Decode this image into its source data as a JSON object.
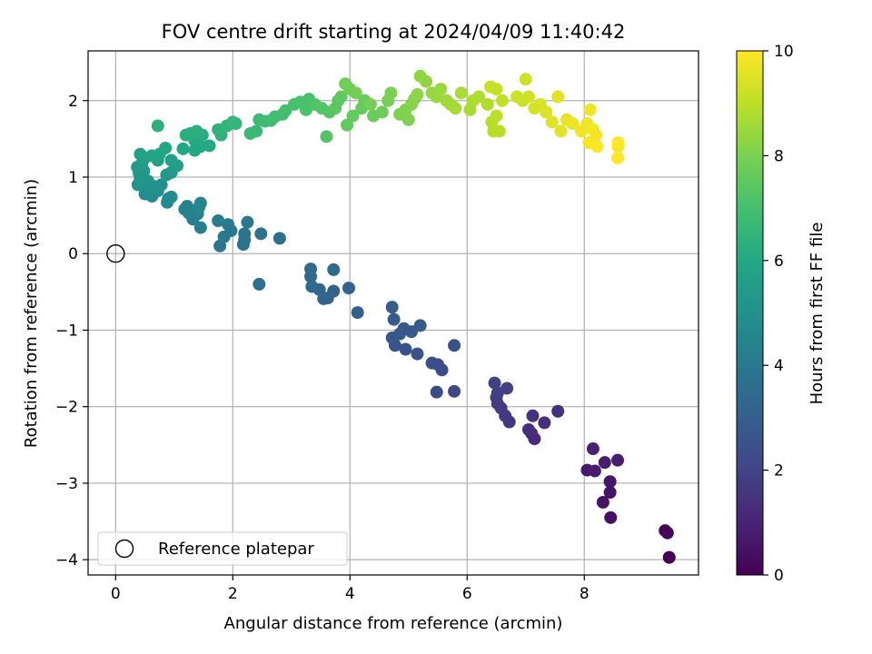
{
  "chart_data": {
    "type": "scatter",
    "title": "FOV centre drift starting at 2024/04/09 11:40:42",
    "xlabel": "Angular distance from reference (arcmin)",
    "ylabel": "Rotation from reference (arcmin)",
    "xlim": [
      -0.47,
      9.95
    ],
    "ylim": [
      -4.2,
      2.65
    ],
    "x_ticks": [
      0,
      2,
      4,
      6,
      8
    ],
    "y_ticks": [
      -4,
      -3,
      -2,
      -1,
      0,
      1,
      2
    ],
    "grid": true,
    "colormap": "viridis",
    "colorbar": {
      "label": "Hours from first FF file",
      "range": [
        0,
        10
      ],
      "ticks": [
        0,
        2,
        4,
        6,
        8,
        10
      ]
    },
    "legend": {
      "position": "lower-left",
      "entries": [
        "Reference platepar"
      ]
    },
    "reference_point": {
      "x": 0,
      "y": 0,
      "label": "Reference platepar"
    },
    "points": [
      [
        9.45,
        -3.97,
        0.0
      ],
      [
        9.38,
        -3.62,
        0.1
      ],
      [
        9.42,
        -3.65,
        0.15
      ],
      [
        8.45,
        -3.45,
        0.4
      ],
      [
        8.32,
        -3.25,
        0.5
      ],
      [
        8.44,
        -3.12,
        0.55
      ],
      [
        8.44,
        -2.98,
        0.6
      ],
      [
        8.05,
        -2.83,
        0.7
      ],
      [
        8.18,
        -2.84,
        0.75
      ],
      [
        8.35,
        -2.73,
        0.8
      ],
      [
        8.57,
        -2.7,
        0.85
      ],
      [
        8.15,
        -2.55,
        0.9
      ],
      [
        7.15,
        -2.42,
        1.2
      ],
      [
        7.1,
        -2.35,
        1.25
      ],
      [
        7.05,
        -2.3,
        1.3
      ],
      [
        7.32,
        -2.21,
        1.35
      ],
      [
        7.12,
        -2.12,
        1.4
      ],
      [
        7.55,
        -2.06,
        1.45
      ],
      [
        6.72,
        -2.2,
        1.6
      ],
      [
        6.65,
        -2.12,
        1.65
      ],
      [
        6.58,
        -2.02,
        1.7
      ],
      [
        6.52,
        -1.96,
        1.75
      ],
      [
        6.5,
        -1.88,
        1.8
      ],
      [
        6.52,
        -1.82,
        1.85
      ],
      [
        6.68,
        -1.76,
        1.9
      ],
      [
        6.47,
        -1.69,
        1.95
      ],
      [
        5.78,
        -1.8,
        2.2
      ],
      [
        5.48,
        -1.81,
        2.25
      ],
      [
        5.57,
        -1.52,
        2.3
      ],
      [
        5.5,
        -1.45,
        2.35
      ],
      [
        5.4,
        -1.43,
        2.4
      ],
      [
        5.78,
        -1.2,
        2.45
      ],
      [
        5.15,
        -1.31,
        2.5
      ],
      [
        4.95,
        -1.25,
        2.55
      ],
      [
        4.77,
        -1.2,
        2.6
      ],
      [
        4.72,
        -1.1,
        2.65
      ],
      [
        4.85,
        -1.05,
        2.7
      ],
      [
        5.05,
        -1.02,
        2.72
      ],
      [
        4.92,
        -0.98,
        2.75
      ],
      [
        5.2,
        -0.94,
        2.8
      ],
      [
        4.75,
        -0.86,
        2.85
      ],
      [
        4.72,
        -0.7,
        2.9
      ],
      [
        4.13,
        -0.77,
        3.05
      ],
      [
        3.98,
        -0.45,
        3.1
      ],
      [
        3.72,
        -0.49,
        3.15
      ],
      [
        3.62,
        -0.58,
        3.2
      ],
      [
        3.55,
        -0.59,
        3.25
      ],
      [
        3.48,
        -0.47,
        3.3
      ],
      [
        3.35,
        -0.43,
        3.35
      ],
      [
        3.33,
        -0.3,
        3.4
      ],
      [
        3.33,
        -0.2,
        3.45
      ],
      [
        3.72,
        -0.21,
        3.5
      ],
      [
        2.45,
        -0.4,
        3.6
      ],
      [
        2.8,
        0.2,
        3.7
      ],
      [
        2.48,
        0.26,
        3.75
      ],
      [
        2.18,
        0.12,
        3.8
      ],
      [
        2.2,
        0.18,
        3.82
      ],
      [
        2.2,
        0.26,
        3.85
      ],
      [
        1.78,
        0.1,
        3.9
      ],
      [
        2.25,
        0.41,
        3.95
      ],
      [
        1.97,
        0.3,
        4.0
      ],
      [
        1.85,
        0.22,
        4.05
      ],
      [
        1.92,
        0.38,
        4.1
      ],
      [
        1.75,
        0.43,
        4.15
      ],
      [
        1.45,
        0.34,
        4.2
      ],
      [
        1.32,
        0.45,
        4.25
      ],
      [
        1.4,
        0.52,
        4.3
      ],
      [
        1.25,
        0.53,
        4.35
      ],
      [
        1.18,
        0.58,
        4.4
      ],
      [
        1.22,
        0.62,
        4.45
      ],
      [
        1.42,
        0.6,
        4.5
      ],
      [
        1.45,
        0.66,
        4.55
      ],
      [
        0.9,
        0.72,
        4.65
      ],
      [
        0.88,
        0.67,
        4.7
      ],
      [
        0.95,
        0.74,
        4.75
      ],
      [
        0.62,
        0.75,
        4.8
      ],
      [
        0.5,
        0.78,
        4.85
      ],
      [
        0.72,
        0.82,
        4.9
      ],
      [
        0.78,
        0.9,
        4.95
      ],
      [
        0.65,
        0.88,
        5.0
      ],
      [
        0.58,
        0.87,
        5.05
      ],
      [
        0.38,
        0.9,
        5.1
      ],
      [
        0.55,
        0.95,
        5.15
      ],
      [
        0.42,
        0.98,
        5.2
      ],
      [
        0.4,
        1.05,
        5.25
      ],
      [
        0.48,
        1.08,
        5.3
      ],
      [
        0.87,
        1.03,
        5.35
      ],
      [
        0.95,
        1.06,
        5.4
      ],
      [
        0.37,
        1.13,
        5.45
      ],
      [
        0.45,
        1.18,
        5.5
      ],
      [
        1.05,
        1.15,
        5.55
      ],
      [
        0.95,
        1.22,
        5.6
      ],
      [
        0.72,
        1.22,
        5.65
      ],
      [
        0.5,
        1.25,
        5.7
      ],
      [
        0.42,
        1.3,
        5.75
      ],
      [
        0.62,
        1.28,
        5.8
      ],
      [
        0.75,
        1.3,
        5.85
      ],
      [
        0.85,
        1.38,
        5.9
      ],
      [
        1.15,
        1.37,
        5.95
      ],
      [
        1.35,
        1.35,
        6.0
      ],
      [
        1.45,
        1.4,
        6.02
      ],
      [
        1.6,
        1.41,
        6.05
      ],
      [
        1.35,
        1.48,
        6.1
      ],
      [
        1.48,
        1.55,
        6.15
      ],
      [
        1.28,
        1.57,
        6.2
      ],
      [
        1.2,
        1.55,
        6.25
      ],
      [
        1.38,
        1.6,
        6.3
      ],
      [
        0.72,
        1.67,
        6.35
      ],
      [
        1.8,
        1.55,
        6.4
      ],
      [
        1.75,
        1.62,
        6.45
      ],
      [
        1.9,
        1.67,
        6.5
      ],
      [
        2.05,
        1.7,
        6.55
      ],
      [
        2.0,
        1.72,
        6.6
      ],
      [
        2.4,
        1.6,
        6.65
      ],
      [
        2.3,
        1.57,
        6.7
      ],
      [
        2.45,
        1.75,
        6.75
      ],
      [
        2.65,
        1.74,
        6.8
      ],
      [
        2.55,
        1.73,
        6.85
      ],
      [
        2.72,
        1.79,
        6.9
      ],
      [
        2.85,
        1.82,
        6.95
      ],
      [
        2.9,
        1.87,
        7.0
      ],
      [
        3.05,
        1.95,
        7.05
      ],
      [
        3.15,
        1.98,
        7.1
      ],
      [
        3.3,
        2.02,
        7.12
      ],
      [
        3.25,
        1.88,
        7.15
      ],
      [
        3.4,
        1.95,
        7.2
      ],
      [
        3.52,
        1.9,
        7.25
      ],
      [
        3.6,
        1.53,
        7.3
      ],
      [
        3.65,
        1.85,
        7.35
      ],
      [
        3.8,
        2.0,
        7.4
      ],
      [
        3.75,
        1.9,
        7.45
      ],
      [
        3.85,
        2.05,
        7.5
      ],
      [
        3.95,
        1.68,
        7.55
      ],
      [
        4.05,
        1.8,
        7.6
      ],
      [
        4.2,
        1.9,
        7.62
      ],
      [
        4.25,
        2.0,
        7.65
      ],
      [
        4.4,
        1.8,
        7.7
      ],
      [
        4.55,
        1.85,
        7.75
      ],
      [
        4.0,
        2.15,
        7.8
      ],
      [
        3.92,
        2.22,
        7.82
      ],
      [
        4.1,
        2.1,
        7.85
      ],
      [
        4.35,
        1.95,
        7.9
      ],
      [
        4.65,
        2.0,
        7.95
      ],
      [
        4.7,
        2.1,
        8.0
      ],
      [
        4.85,
        1.82,
        8.02
      ],
      [
        5.0,
        1.75,
        8.05
      ],
      [
        4.95,
        1.88,
        8.1
      ],
      [
        5.05,
        1.95,
        8.15
      ],
      [
        5.1,
        2.02,
        8.2
      ],
      [
        5.15,
        2.08,
        8.25
      ],
      [
        5.2,
        2.32,
        8.3
      ],
      [
        5.3,
        2.25,
        8.35
      ],
      [
        5.4,
        2.1,
        8.4
      ],
      [
        5.48,
        2.05,
        8.45
      ],
      [
        5.55,
        2.15,
        8.5
      ],
      [
        5.65,
        2.0,
        8.55
      ],
      [
        5.72,
        1.95,
        8.6
      ],
      [
        5.8,
        1.9,
        8.65
      ],
      [
        5.9,
        2.1,
        8.7
      ],
      [
        6.05,
        1.88,
        8.72
      ],
      [
        6.1,
        2.0,
        8.75
      ],
      [
        6.2,
        2.05,
        8.8
      ],
      [
        6.35,
        1.95,
        8.85
      ],
      [
        6.42,
        1.72,
        8.9
      ],
      [
        6.45,
        1.6,
        8.92
      ],
      [
        6.55,
        1.6,
        8.95
      ],
      [
        6.5,
        1.8,
        9.0
      ],
      [
        6.6,
        2.0,
        9.05
      ],
      [
        6.5,
        2.15,
        9.1
      ],
      [
        6.4,
        2.18,
        9.15
      ],
      [
        6.85,
        2.05,
        9.2
      ],
      [
        6.95,
        2.0,
        9.22
      ],
      [
        7.0,
        2.28,
        9.25
      ],
      [
        7.05,
        2.05,
        9.3
      ],
      [
        7.15,
        1.9,
        9.35
      ],
      [
        7.25,
        1.95,
        9.4
      ],
      [
        7.35,
        1.85,
        9.45
      ],
      [
        7.45,
        1.72,
        9.5
      ],
      [
        7.55,
        2.05,
        9.55
      ],
      [
        7.6,
        1.6,
        9.6
      ],
      [
        7.7,
        1.75,
        9.65
      ],
      [
        7.8,
        1.7,
        9.7
      ],
      [
        7.95,
        1.6,
        9.75
      ],
      [
        8.05,
        1.7,
        9.78
      ],
      [
        8.1,
        1.88,
        9.8
      ],
      [
        8.15,
        1.62,
        9.85
      ],
      [
        8.2,
        1.55,
        9.88
      ],
      [
        8.08,
        1.45,
        9.9
      ],
      [
        8.22,
        1.4,
        9.93
      ],
      [
        8.58,
        1.45,
        9.96
      ],
      [
        8.58,
        1.4,
        9.98
      ],
      [
        8.57,
        1.25,
        10.0
      ]
    ]
  }
}
